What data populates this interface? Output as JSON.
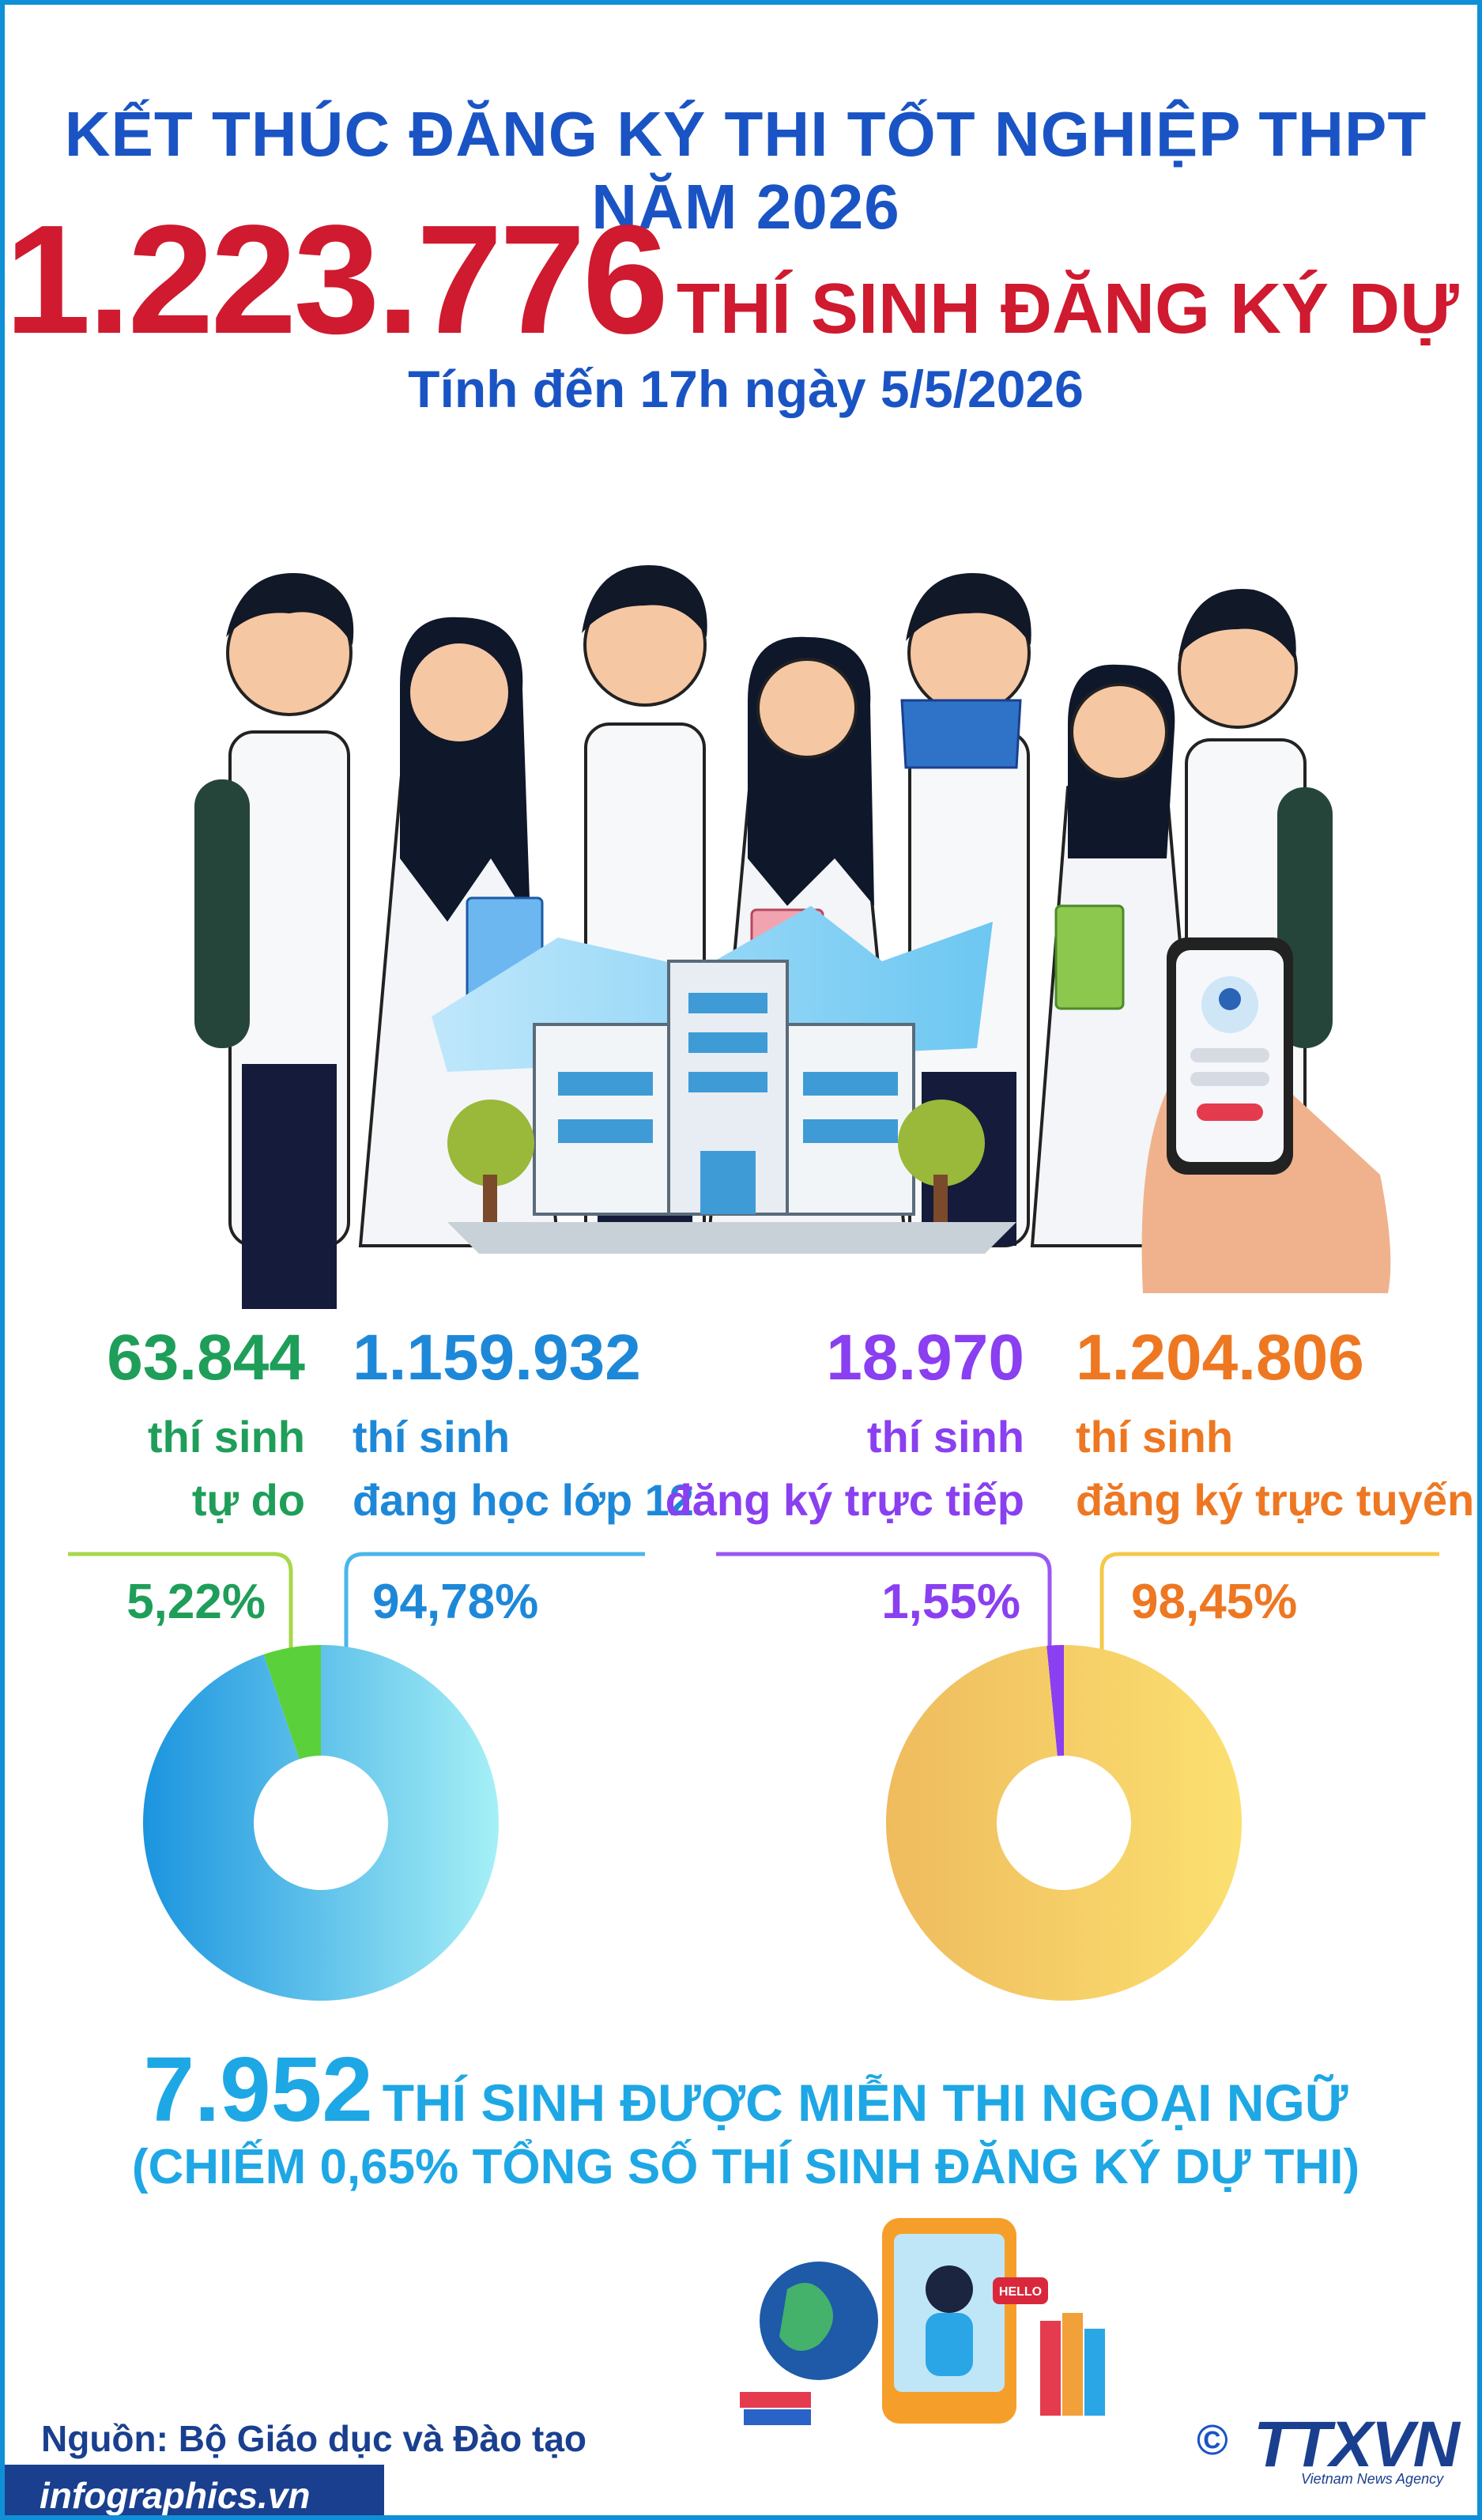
{
  "header": {
    "title": "KẾT THÚC ĐĂNG KÝ THI TỐT NGHIỆP THPT NĂM 2026",
    "total_number": "1.223.776",
    "total_suffix": "THÍ SINH ĐĂNG KÝ DỰ THI",
    "as_of": "Tính đến 17h ngày 5/5/2026"
  },
  "stats": {
    "free": {
      "number": "63.844",
      "line1": "thí sinh",
      "line2": "tự do",
      "percent": "5,22%"
    },
    "grade12": {
      "number": "1.159.932",
      "line1": "thí sinh",
      "line2": "đang học lớp 12",
      "percent": "94,78%"
    },
    "direct": {
      "number": "18.970",
      "line1": "thí sinh",
      "line2": "đăng ký trực tiếp",
      "percent": "1,55%"
    },
    "online": {
      "number": "1.204.806",
      "line1": "thí sinh",
      "line2": "đăng ký trực tuyến",
      "percent": "98,45%"
    }
  },
  "exempt": {
    "number": "7.952",
    "text": "THÍ SINH ĐƯỢC MIỄN THI NGOẠI NGỮ",
    "note": "(CHIẾM 0,65% TỔNG SỐ THÍ SINH ĐĂNG KÝ DỰ THI)"
  },
  "source": "Nguồn: Bộ Giáo dục và Đào tạo",
  "site": "infographics.vn",
  "copyright_symbol": "©",
  "logo": "TTXVN",
  "logo_sub": "Vietnam News Agency",
  "illustration": {
    "phone_button": "",
    "hello_bubble": "HELLO"
  },
  "colors": {
    "title_blue": "#1a54c4",
    "accent_red": "#cf1a2f",
    "free_green": "#1f9e5a",
    "grade12_blue": "#1e88d8",
    "direct_purple": "#8a3ff0",
    "online_orange": "#ee7722",
    "cyan": "#1ea7e5"
  },
  "chart_data": [
    {
      "type": "pie",
      "categories": [
        "thí sinh tự do",
        "thí sinh đang học lớp 12"
      ],
      "values": [
        5.22,
        94.78
      ],
      "value_labels": [
        "5,22%",
        "94,78%"
      ],
      "colors": [
        "#5ad13a",
        "#2aa6e6"
      ]
    },
    {
      "type": "pie",
      "categories": [
        "thí sinh đăng ký trực tiếp",
        "thí sinh đăng ký trực tuyến"
      ],
      "values": [
        1.55,
        98.45
      ],
      "value_labels": [
        "1,55%",
        "98,45%"
      ],
      "colors": [
        "#8a3ff0",
        "#f2c466"
      ]
    }
  ]
}
